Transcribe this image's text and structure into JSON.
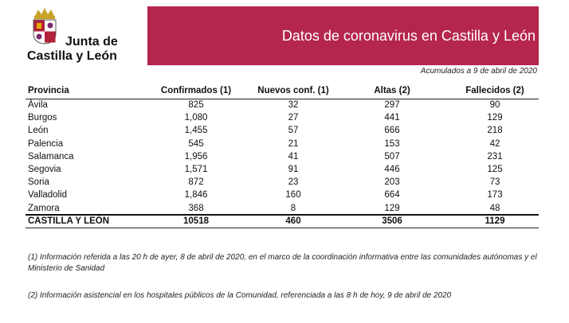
{
  "header": {
    "logo_line1": "Junta de",
    "logo_line2": "Castilla y León",
    "title": "Datos de coronavirus en Castilla y León"
  },
  "date_note": "Acumulados a 9 de abril de 2020",
  "table": {
    "columns": [
      "Provincia",
      "Confirmados (1)",
      "Nuevos conf. (1)",
      "Altas (2)",
      "Fallecidos (2)"
    ],
    "rows": [
      [
        "Ávila",
        "825",
        "32",
        "297",
        "90"
      ],
      [
        "Burgos",
        "1,080",
        "27",
        "441",
        "129"
      ],
      [
        "León",
        "1,455",
        "57",
        "666",
        "218"
      ],
      [
        "Palencia",
        "545",
        "21",
        "153",
        "42"
      ],
      [
        "Salamanca",
        "1,956",
        "41",
        "507",
        "231"
      ],
      [
        "Segovia",
        "1,571",
        "91",
        "446",
        "125"
      ],
      [
        "Soria",
        "872",
        "23",
        "203",
        "73"
      ],
      [
        "Valladolid",
        "1,846",
        "160",
        "664",
        "173"
      ],
      [
        "Zamora",
        "368",
        "8",
        "129",
        "48"
      ]
    ],
    "total": [
      "CASTILLA Y LEÓN",
      "10518",
      "460",
      "3506",
      "1129"
    ]
  },
  "footnotes": [
    "(1) Información referida a las 20 h de ayer, 8 de abril de 2020, en el marco de la coordinación informativa entre las comunidades autónomas y el Ministerio de Sanidad",
    "(2) Información asistencial en los hospitales públicos de la Comunidad, referenciada a las 8 h de hoy, 9 de abril de 2020"
  ]
}
